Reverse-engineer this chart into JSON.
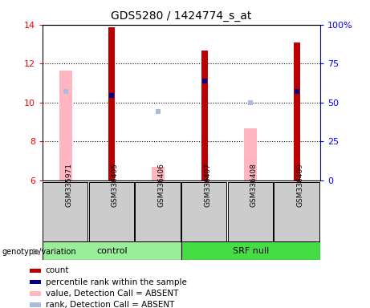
{
  "title": "GDS5280 / 1424774_s_at",
  "samples": [
    "GSM335971",
    "GSM336405",
    "GSM336406",
    "GSM336407",
    "GSM336408",
    "GSM336409"
  ],
  "ylim_left": [
    6,
    14
  ],
  "ylim_right": [
    0,
    100
  ],
  "yticks_left": [
    6,
    8,
    10,
    12,
    14
  ],
  "yticks_right": [
    0,
    25,
    50,
    75,
    100
  ],
  "count_values": [
    null,
    13.85,
    null,
    12.65,
    null,
    13.1
  ],
  "count_color": "#BB0000",
  "percentile_rank_values": [
    null,
    10.35,
    null,
    11.1,
    null,
    10.55
  ],
  "percentile_rank_color": "#00008B",
  "value_absent_values": [
    11.65,
    null,
    6.7,
    null,
    8.65,
    null
  ],
  "value_absent_color": "#FFB6C1",
  "rank_absent_values": [
    10.55,
    null,
    9.55,
    null,
    10.0,
    null
  ],
  "rank_absent_color": "#AABBDD",
  "group_control_color": "#99EE99",
  "group_srfnull_color": "#44DD44",
  "sample_box_color": "#CCCCCC",
  "legend_items": [
    {
      "label": "count",
      "color": "#BB0000"
    },
    {
      "label": "percentile rank within the sample",
      "color": "#00008B"
    },
    {
      "label": "value, Detection Call = ABSENT",
      "color": "#FFB6C1"
    },
    {
      "label": "rank, Detection Call = ABSENT",
      "color": "#AABBDD"
    }
  ]
}
